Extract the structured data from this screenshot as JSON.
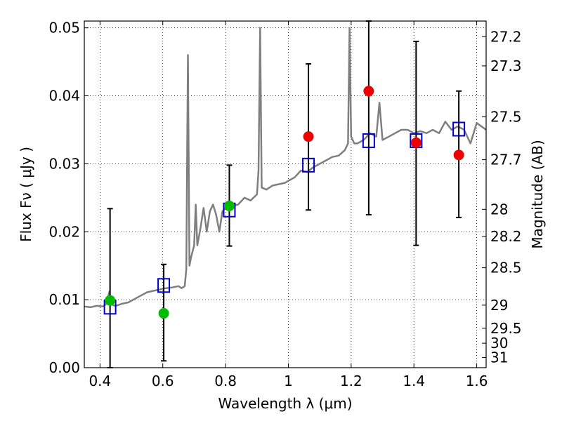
{
  "chart_data": {
    "type": "scatter",
    "xlabel": "Wavelength  λ (μm)",
    "ylabel": "Flux  Fν  ( μJy )",
    "ylabel_right": "Magnitude (AB)",
    "xlim": [
      0.35,
      1.63
    ],
    "ylim": [
      0.0,
      0.051
    ],
    "grid": true,
    "x_ticks": [
      0.4,
      0.6,
      0.8,
      1.0,
      1.2,
      1.4,
      1.6
    ],
    "x_tick_labels": [
      "0.4",
      "0.6",
      "0.8",
      "1",
      "1.2",
      "1.4",
      "1.6"
    ],
    "y_ticks": [
      0.0,
      0.01,
      0.02,
      0.03,
      0.04,
      0.05
    ],
    "y_tick_labels": [
      "0.00",
      "0.01",
      "0.02",
      "0.03",
      "0.04",
      "0.05"
    ],
    "right_ticks": [
      {
        "label": "27.2",
        "flux": 0.0487
      },
      {
        "label": "27.3",
        "flux": 0.0444
      },
      {
        "label": "27.5",
        "flux": 0.0369
      },
      {
        "label": "27.7",
        "flux": 0.0306
      },
      {
        "label": "28",
        "flux": 0.0233
      },
      {
        "label": "28.2",
        "flux": 0.0193
      },
      {
        "label": "28.5",
        "flux": 0.0147
      },
      {
        "label": "29",
        "flux": 0.0092
      },
      {
        "label": "29.5",
        "flux": 0.0058
      },
      {
        "label": "30",
        "flux": 0.0036
      },
      {
        "label": "31",
        "flux": 0.0015
      }
    ],
    "model_spectrum": {
      "color": "#7f7f7f",
      "points": [
        [
          0.35,
          0.009
        ],
        [
          0.37,
          0.0089
        ],
        [
          0.39,
          0.0091
        ],
        [
          0.41,
          0.009
        ],
        [
          0.42,
          0.0094
        ],
        [
          0.43,
          0.0112
        ],
        [
          0.435,
          0.0093
        ],
        [
          0.45,
          0.0091
        ],
        [
          0.47,
          0.0094
        ],
        [
          0.49,
          0.0096
        ],
        [
          0.51,
          0.0101
        ],
        [
          0.53,
          0.0106
        ],
        [
          0.55,
          0.0111
        ],
        [
          0.57,
          0.0113
        ],
        [
          0.59,
          0.0115
        ],
        [
          0.61,
          0.0117
        ],
        [
          0.63,
          0.0118
        ],
        [
          0.65,
          0.012
        ],
        [
          0.66,
          0.0117
        ],
        [
          0.67,
          0.012
        ],
        [
          0.675,
          0.0145
        ],
        [
          0.68,
          0.046
        ],
        [
          0.685,
          0.015
        ],
        [
          0.69,
          0.0162
        ],
        [
          0.7,
          0.018
        ],
        [
          0.705,
          0.024
        ],
        [
          0.71,
          0.018
        ],
        [
          0.72,
          0.0205
        ],
        [
          0.73,
          0.0235
        ],
        [
          0.74,
          0.02
        ],
        [
          0.75,
          0.023
        ],
        [
          0.76,
          0.024
        ],
        [
          0.77,
          0.0225
        ],
        [
          0.78,
          0.02
        ],
        [
          0.79,
          0.023
        ],
        [
          0.8,
          0.0235
        ],
        [
          0.82,
          0.0238
        ],
        [
          0.84,
          0.024
        ],
        [
          0.86,
          0.025
        ],
        [
          0.88,
          0.0246
        ],
        [
          0.9,
          0.0255
        ],
        [
          0.905,
          0.029
        ],
        [
          0.91,
          0.05
        ],
        [
          0.915,
          0.0265
        ],
        [
          0.93,
          0.0262
        ],
        [
          0.95,
          0.0268
        ],
        [
          0.97,
          0.027
        ],
        [
          0.99,
          0.0272
        ],
        [
          1.0,
          0.0275
        ],
        [
          1.02,
          0.028
        ],
        [
          1.04,
          0.029
        ],
        [
          1.06,
          0.0288
        ],
        [
          1.08,
          0.0295
        ],
        [
          1.1,
          0.03
        ],
        [
          1.12,
          0.0305
        ],
        [
          1.14,
          0.031
        ],
        [
          1.16,
          0.0312
        ],
        [
          1.18,
          0.032
        ],
        [
          1.19,
          0.033
        ],
        [
          1.195,
          0.05
        ],
        [
          1.2,
          0.034
        ],
        [
          1.21,
          0.033
        ],
        [
          1.22,
          0.033
        ],
        [
          1.24,
          0.0335
        ],
        [
          1.26,
          0.0345
        ],
        [
          1.28,
          0.034
        ],
        [
          1.29,
          0.039
        ],
        [
          1.3,
          0.0335
        ],
        [
          1.32,
          0.034
        ],
        [
          1.34,
          0.0345
        ],
        [
          1.36,
          0.035
        ],
        [
          1.38,
          0.035
        ],
        [
          1.4,
          0.0345
        ],
        [
          1.42,
          0.0348
        ],
        [
          1.44,
          0.0345
        ],
        [
          1.46,
          0.035
        ],
        [
          1.48,
          0.0345
        ],
        [
          1.5,
          0.0362
        ],
        [
          1.52,
          0.035
        ],
        [
          1.54,
          0.0355
        ],
        [
          1.56,
          0.035
        ],
        [
          1.58,
          0.033
        ],
        [
          1.6,
          0.036
        ],
        [
          1.63,
          0.035
        ]
      ]
    },
    "series": [
      {
        "marker": "square",
        "color": "#0000cc",
        "points": [
          {
            "x": 0.432,
            "y": 0.0089,
            "yerr_low": 0.0,
            "yerr_high": 0.0234
          },
          {
            "x": 0.603,
            "y": 0.0121,
            "yerr_low": 0.001,
            "yerr_high": 0.0152
          },
          {
            "x": 0.812,
            "y": 0.0232,
            "yerr_low": 0.0179,
            "yerr_high": 0.0298
          },
          {
            "x": 1.064,
            "y": 0.0298,
            "yerr_low": 0.0232,
            "yerr_high": 0.0447
          },
          {
            "x": 1.256,
            "y": 0.0334,
            "yerr_low": 0.0225,
            "yerr_high": 0.051
          },
          {
            "x": 1.407,
            "y": 0.0334,
            "yerr_low": 0.018,
            "yerr_high": 0.048
          },
          {
            "x": 1.543,
            "y": 0.0351,
            "yerr_low": 0.0221,
            "yerr_high": 0.0407
          }
        ]
      },
      {
        "marker": "circle",
        "color": "#00bb00",
        "points": [
          {
            "x": 0.432,
            "y": 0.0099
          },
          {
            "x": 0.603,
            "y": 0.008
          },
          {
            "x": 0.812,
            "y": 0.0238
          }
        ]
      },
      {
        "marker": "circle",
        "color": "#ee0000",
        "points": [
          {
            "x": 1.064,
            "y": 0.034
          },
          {
            "x": 1.256,
            "y": 0.0407
          },
          {
            "x": 1.407,
            "y": 0.0331
          },
          {
            "x": 1.543,
            "y": 0.0313
          }
        ]
      }
    ]
  }
}
